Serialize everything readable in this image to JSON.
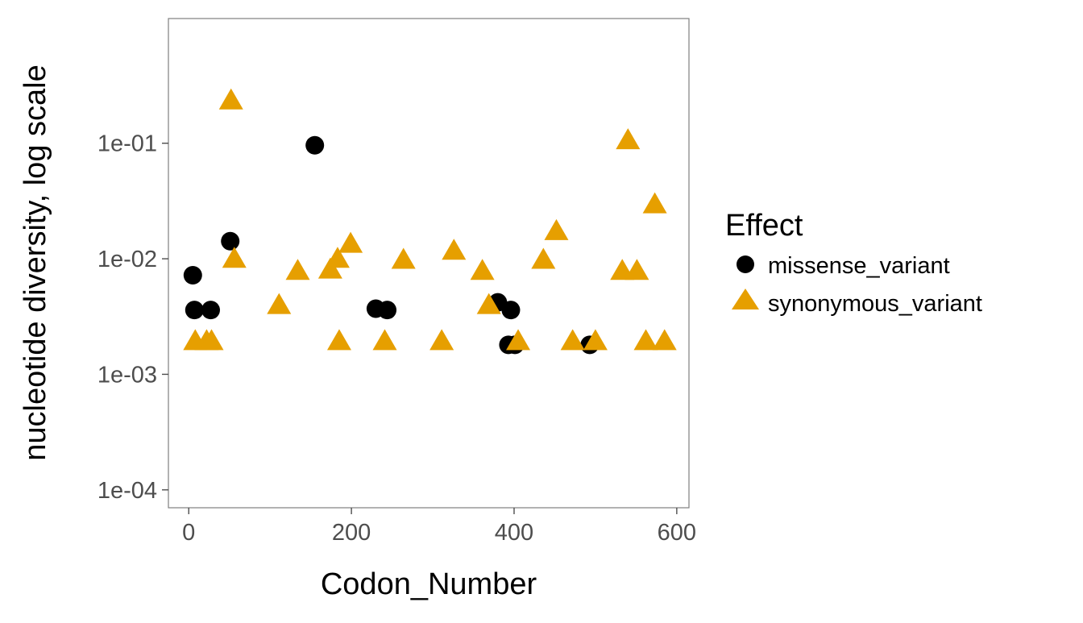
{
  "chart_data": {
    "type": "scatter",
    "xlabel": "Codon_Number",
    "ylabel": "nucleotide diversity, log scale",
    "xlim": [
      -25,
      615
    ],
    "ylim": [
      7e-05,
      1.2
    ],
    "y_scale": "log",
    "x_ticks": [
      0,
      200,
      400,
      600
    ],
    "y_ticks": [
      0.0001,
      0.001,
      0.01,
      0.1
    ],
    "x_tick_labels": [
      "0",
      "200",
      "400",
      "600"
    ],
    "y_tick_labels": [
      "1e-04",
      "1e-03",
      "1e-02",
      "1e-01"
    ],
    "grid": false,
    "legend": {
      "title": "Effect",
      "placement": "right"
    },
    "series": [
      {
        "name": "missense_variant",
        "marker": "circle",
        "color": "#000000",
        "points": [
          [
            5,
            0.0072
          ],
          [
            7,
            0.0036
          ],
          [
            27,
            0.0036
          ],
          [
            51,
            0.0142
          ],
          [
            155,
            0.096
          ],
          [
            230,
            0.0037
          ],
          [
            244,
            0.0036
          ],
          [
            380,
            0.0042
          ],
          [
            393,
            0.0018
          ],
          [
            396,
            0.0036
          ],
          [
            401,
            0.0018
          ],
          [
            493,
            0.0018
          ]
        ]
      },
      {
        "name": "synonymous_variant",
        "marker": "triangle",
        "color": "#E69F00",
        "points": [
          [
            8,
            0.0019
          ],
          [
            22,
            0.0019
          ],
          [
            28,
            0.0019
          ],
          [
            52,
            0.23
          ],
          [
            56,
            0.0098
          ],
          [
            111,
            0.0039
          ],
          [
            134,
            0.0077
          ],
          [
            174,
            0.0079
          ],
          [
            183,
            0.0098
          ],
          [
            185,
            0.0019
          ],
          [
            199,
            0.0132
          ],
          [
            241,
            0.0019
          ],
          [
            264,
            0.0096
          ],
          [
            311,
            0.0019
          ],
          [
            326,
            0.0115
          ],
          [
            361,
            0.0077
          ],
          [
            369,
            0.0039
          ],
          [
            405,
            0.0019
          ],
          [
            436,
            0.0096
          ],
          [
            452,
            0.017
          ],
          [
            472,
            0.0019
          ],
          [
            500,
            0.0019
          ],
          [
            533,
            0.0077
          ],
          [
            540,
            0.104
          ],
          [
            551,
            0.0077
          ],
          [
            562,
            0.0019
          ],
          [
            573,
            0.029
          ],
          [
            585,
            0.0019
          ]
        ]
      }
    ]
  }
}
